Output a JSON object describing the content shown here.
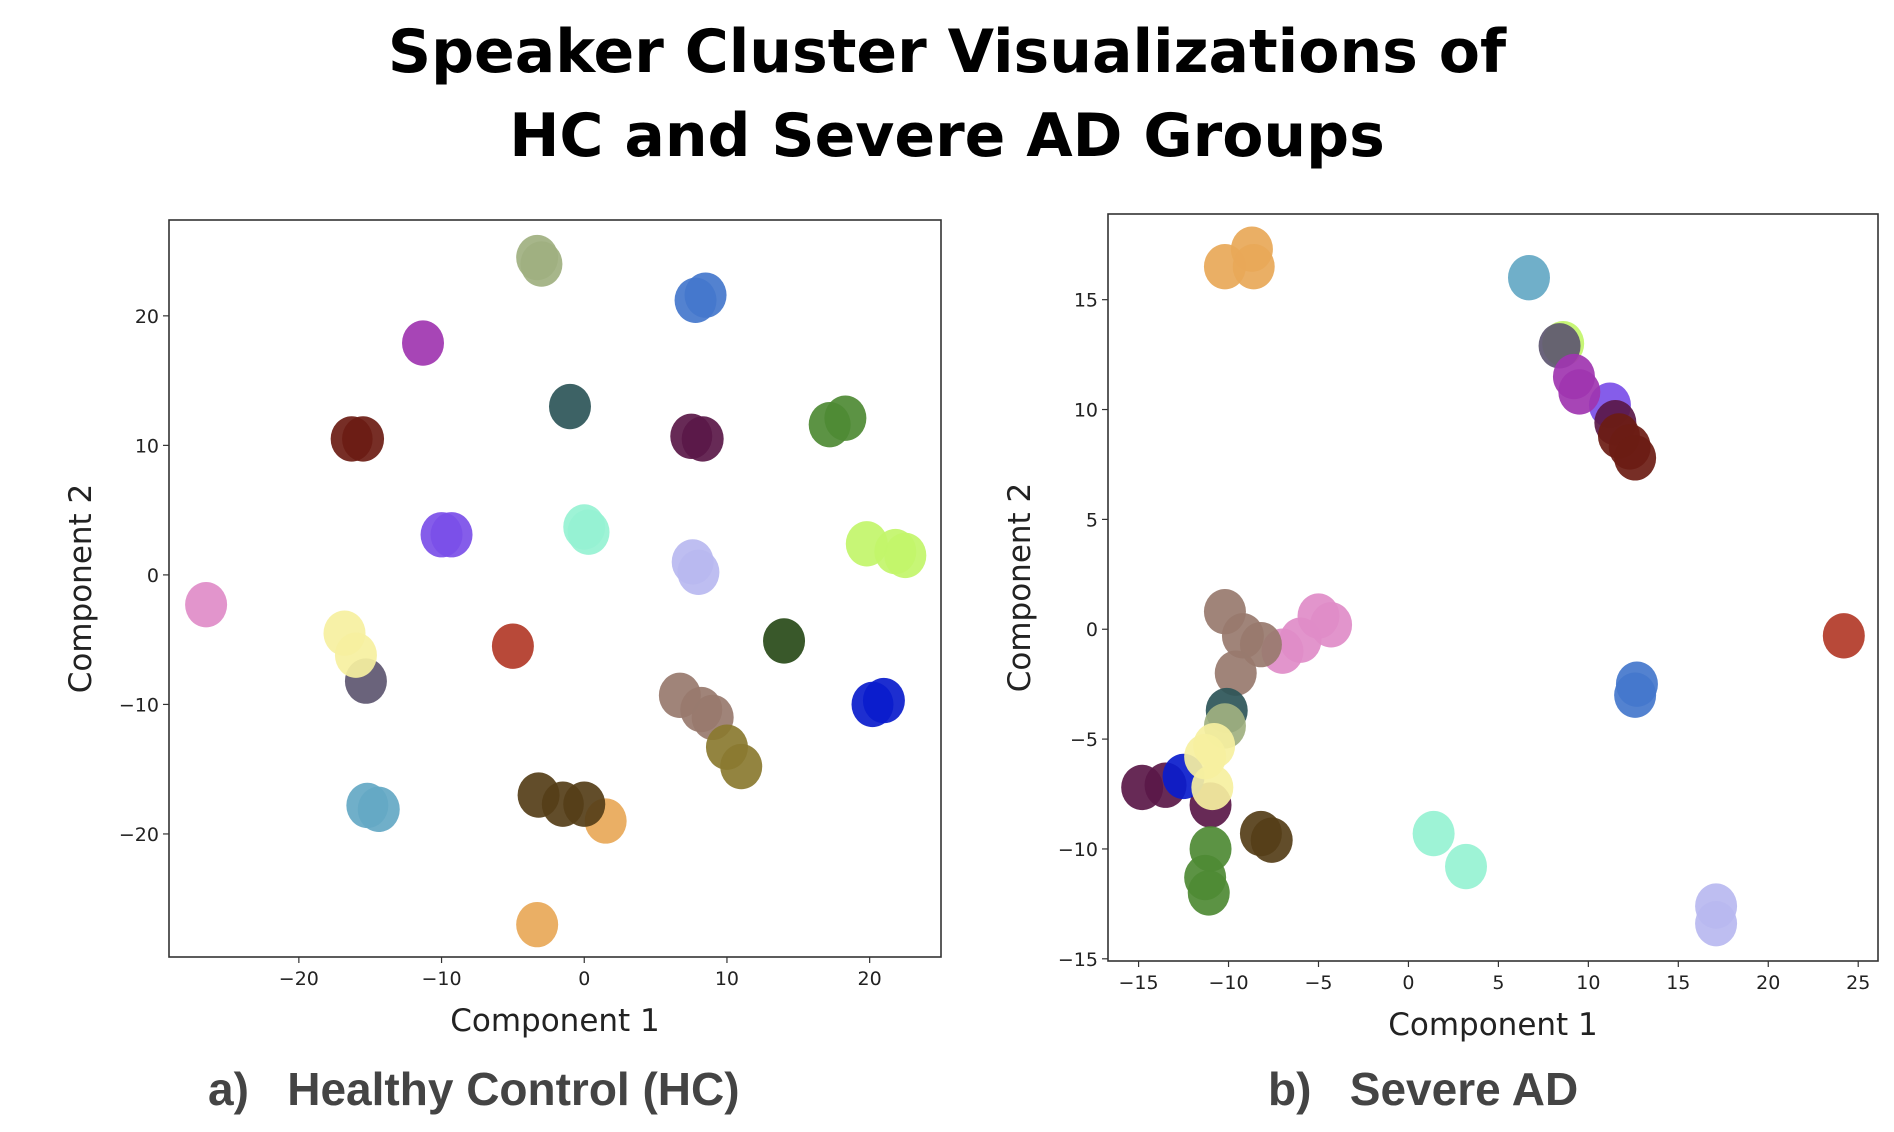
{
  "title": {
    "line1": "Speaker Cluster Visualizations of",
    "line2": "HC and Severe AD Groups"
  },
  "captions": {
    "a": "a)   Healthy Control (HC)",
    "b": "b)   Severe AD"
  },
  "chart_data": [
    {
      "type": "scatter",
      "title": "",
      "xlabel": "Component 1",
      "ylabel": "Component 2",
      "xlim": [
        -29.1,
        25.0
      ],
      "ylim": [
        -29.5,
        27.4
      ],
      "xticks": [
        -20,
        -10,
        0,
        10,
        20
      ],
      "yticks": [
        -20,
        -10,
        0,
        10,
        20
      ],
      "grid": false,
      "series": [
        {
          "color": "#a0b080",
          "points": [
            [
              -3.3,
              24.5
            ],
            [
              -3.0,
              24.0
            ]
          ]
        },
        {
          "color": "#4477cc",
          "points": [
            [
              7.8,
              21.2
            ],
            [
              8.5,
              21.6
            ]
          ]
        },
        {
          "color": "#a035b0",
          "points": [
            [
              -11.3,
              17.9
            ]
          ]
        },
        {
          "color": "#2d5558",
          "points": [
            [
              -1.0,
              13.0
            ]
          ]
        },
        {
          "color": "#6b1c14",
          "points": [
            [
              -16.3,
              10.5
            ],
            [
              -15.5,
              10.5
            ]
          ]
        },
        {
          "color": "#5a1848",
          "points": [
            [
              7.5,
              10.7
            ],
            [
              8.3,
              10.5
            ]
          ]
        },
        {
          "color": "#4e8a34",
          "points": [
            [
              17.2,
              11.6
            ],
            [
              18.3,
              12.1
            ]
          ]
        },
        {
          "color": "#7b4fe8",
          "points": [
            [
              -10.0,
              3.1
            ],
            [
              -9.3,
              3.1
            ]
          ]
        },
        {
          "color": "#96f2d2",
          "points": [
            [
              0.0,
              3.7
            ],
            [
              0.3,
              3.3
            ]
          ]
        },
        {
          "color": "#b8b8f0",
          "points": [
            [
              7.6,
              1.0
            ],
            [
              8.0,
              0.2
            ]
          ]
        },
        {
          "color": "#c2f56a",
          "points": [
            [
              19.8,
              2.4
            ],
            [
              21.8,
              1.8
            ],
            [
              22.5,
              1.5
            ]
          ]
        },
        {
          "color": "#e08cc8",
          "points": [
            [
              -26.5,
              -2.3
            ]
          ]
        },
        {
          "color": "#5d5670",
          "points": [
            [
              -15.3,
              -8.2
            ]
          ]
        },
        {
          "color": "#f6f0a0",
          "points": [
            [
              -16.8,
              -4.5
            ],
            [
              -16.0,
              -6.2
            ]
          ]
        },
        {
          "color": "#b23a28",
          "points": [
            [
              -5.0,
              -5.5
            ]
          ]
        },
        {
          "color": "#284a18",
          "points": [
            [
              14.0,
              -5.1
            ]
          ]
        },
        {
          "color": "#0a1ccc",
          "points": [
            [
              20.2,
              -10.0
            ],
            [
              21.0,
              -9.7
            ]
          ]
        },
        {
          "color": "#987a6e",
          "points": [
            [
              6.7,
              -9.3
            ],
            [
              8.2,
              -10.4
            ],
            [
              9.0,
              -11.0
            ]
          ]
        },
        {
          "color": "#8a7a30",
          "points": [
            [
              10.0,
              -13.3
            ],
            [
              11.0,
              -14.8
            ]
          ]
        },
        {
          "color": "#64a8c4",
          "points": [
            [
              -15.2,
              -17.8
            ],
            [
              -14.4,
              -18.1
            ]
          ]
        },
        {
          "color": "#e8a858",
          "points": [
            [
              1.5,
              -19.0
            ],
            [
              -3.3,
              -27.0
            ]
          ]
        },
        {
          "color": "#553e18",
          "points": [
            [
              -3.2,
              -17.0
            ],
            [
              -1.5,
              -17.7
            ],
            [
              0.0,
              -17.7
            ]
          ]
        }
      ]
    },
    {
      "type": "scatter",
      "title": "",
      "xlabel": "Component 1",
      "ylabel": "Component 2",
      "xlim": [
        -16.7,
        26.1
      ],
      "ylim": [
        -15.1,
        18.9
      ],
      "xticks": [
        -15,
        -10,
        -5,
        0,
        5,
        10,
        15,
        20,
        25
      ],
      "yticks": [
        -15,
        -10,
        -5,
        0,
        5,
        10,
        15
      ],
      "grid": false,
      "series": [
        {
          "color": "#e8a858",
          "points": [
            [
              -10.2,
              16.5
            ],
            [
              -8.7,
              17.3
            ],
            [
              -8.6,
              16.5
            ]
          ]
        },
        {
          "color": "#64a8c4",
          "points": [
            [
              6.7,
              16.0
            ]
          ]
        },
        {
          "color": "#c2f56a",
          "points": [
            [
              8.6,
              13.0
            ]
          ]
        },
        {
          "color": "#5d5670",
          "points": [
            [
              8.4,
              12.9
            ]
          ]
        },
        {
          "color": "#7b4fe8",
          "points": [
            [
              11.2,
              10.2
            ]
          ]
        },
        {
          "color": "#a035b0",
          "points": [
            [
              9.2,
              11.5
            ],
            [
              9.5,
              10.8
            ]
          ]
        },
        {
          "color": "#5a1848",
          "points": [
            [
              11.5,
              9.4
            ]
          ]
        },
        {
          "color": "#6b1c14",
          "points": [
            [
              11.7,
              8.8
            ],
            [
              12.3,
              8.3
            ],
            [
              12.6,
              7.8
            ]
          ]
        },
        {
          "color": "#b23a28",
          "points": [
            [
              24.2,
              -0.3
            ]
          ]
        },
        {
          "color": "#4477cc",
          "points": [
            [
              12.7,
              -2.5
            ],
            [
              12.6,
              -3.0
            ]
          ]
        },
        {
          "color": "#b8b8f0",
          "points": [
            [
              17.1,
              -12.6
            ],
            [
              17.1,
              -13.4
            ]
          ]
        },
        {
          "color": "#96f2d2",
          "points": [
            [
              1.4,
              -9.3
            ],
            [
              3.2,
              -10.8
            ]
          ]
        },
        {
          "color": "#e08cc8",
          "points": [
            [
              -7.0,
              -1.0
            ],
            [
              -6.0,
              -0.5
            ],
            [
              -5.0,
              0.6
            ],
            [
              -4.3,
              0.2
            ]
          ]
        },
        {
          "color": "#987a6e",
          "points": [
            [
              -10.2,
              0.8
            ],
            [
              -9.2,
              -0.3
            ],
            [
              -8.2,
              -0.7
            ],
            [
              -9.6,
              -2.0
            ]
          ]
        },
        {
          "color": "#2d5558",
          "points": [
            [
              -10.1,
              -3.7
            ]
          ]
        },
        {
          "color": "#a0b080",
          "points": [
            [
              -10.2,
              -4.4
            ]
          ]
        },
        {
          "color": "#5a1848",
          "points": [
            [
              -14.8,
              -7.2
            ],
            [
              -13.5,
              -7.1
            ],
            [
              -11.0,
              -8.0
            ]
          ]
        },
        {
          "color": "#0a1ccc",
          "points": [
            [
              -12.5,
              -6.7
            ]
          ]
        },
        {
          "color": "#f6f0a0",
          "points": [
            [
              -10.8,
              -5.3
            ],
            [
              -11.3,
              -5.8
            ],
            [
              -10.9,
              -7.2
            ]
          ]
        },
        {
          "color": "#4e8a34",
          "points": [
            [
              -11.0,
              -10.0
            ],
            [
              -11.3,
              -11.3
            ],
            [
              -11.1,
              -12.0
            ]
          ]
        },
        {
          "color": "#553e18",
          "points": [
            [
              -8.2,
              -9.3
            ],
            [
              -7.6,
              -9.6
            ]
          ]
        }
      ]
    }
  ]
}
